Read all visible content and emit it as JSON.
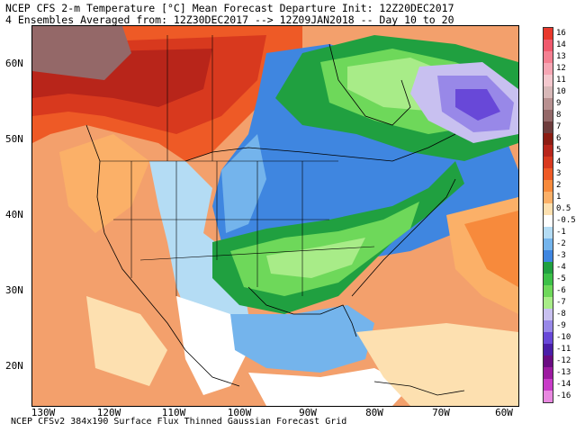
{
  "header": {
    "line1": "NCEP CFS 2-m Temperature [°C] Mean Forecast Departure Init: 12Z20DEC2017",
    "line2": "4 Ensembles Averaged from: 12Z30DEC2017 --> 12Z09JAN2018 -- Day 10 to 20"
  },
  "footer": {
    "text": "NCEP CFSv2 384x190 Surface Flux Thinned Gaussian Forecast Grid"
  },
  "axes": {
    "lat_labels": [
      "60N",
      "50N",
      "40N",
      "30N",
      "20N"
    ],
    "lon_labels": [
      "130W",
      "120W",
      "110W",
      "100W",
      "90W",
      "80W",
      "70W",
      "60W"
    ]
  },
  "colorbar": {
    "labels": [
      "16",
      "14",
      "13",
      "12",
      "11",
      "10",
      "9",
      "8",
      "7",
      "6",
      "5",
      "4",
      "3",
      "2",
      "1",
      "0.5",
      "-0.5",
      "-1",
      "-2",
      "-3",
      "-4",
      "-5",
      "-6",
      "-7",
      "-8",
      "-9",
      "-10",
      "-11",
      "-12",
      "-13",
      "-14",
      "-16"
    ],
    "colors": [
      "#e8382c",
      "#f05a6e",
      "#f48092",
      "#f6a6b4",
      "#f4c8ce",
      "#d8b8b8",
      "#b89090",
      "#946868",
      "#6e3c3c",
      "#8c1c12",
      "#b8251a",
      "#d8391e",
      "#ee5a26",
      "#f78a3c",
      "#fbb068",
      "#fde0b0",
      "#ffffff",
      "#b4dcf4",
      "#74b4ec",
      "#3f86e0",
      "#20a040",
      "#3cc048",
      "#6ed85a",
      "#a8ec88",
      "#c8c0f0",
      "#9888e8",
      "#6848d8",
      "#4a1ea8",
      "#6a0c82",
      "#9c1aa0",
      "#c83cc8",
      "#e888e0"
    ]
  },
  "map": {
    "background": "#f3a06c",
    "regions": [
      {
        "name": "warm-north-canada",
        "color": "#ee5a26"
      },
      {
        "name": "hot-core-canada",
        "color": "#d8391e"
      },
      {
        "name": "very-hot-alaska",
        "color": "#8c1c12"
      },
      {
        "name": "brown-alaska",
        "color": "#946868"
      },
      {
        "name": "cool-hudson",
        "color": "#20a040"
      },
      {
        "name": "cold-quebec",
        "color": "#9888e8"
      },
      {
        "name": "coldest-quebec",
        "color": "#6848d8"
      },
      {
        "name": "cold-east",
        "color": "#3f86e0"
      },
      {
        "name": "southeast-green",
        "color": "#20a040"
      },
      {
        "name": "southeast-lightgreen",
        "color": "#6ed85a"
      },
      {
        "name": "gulf-blue",
        "color": "#74b4ec"
      },
      {
        "name": "light-blue-rockies",
        "color": "#b4dcf4"
      },
      {
        "name": "neutral-white",
        "color": "#ffffff"
      },
      {
        "name": "atlantic-warm",
        "color": "#fbb068"
      },
      {
        "name": "caribbean-warm",
        "color": "#fde0b0"
      }
    ]
  }
}
